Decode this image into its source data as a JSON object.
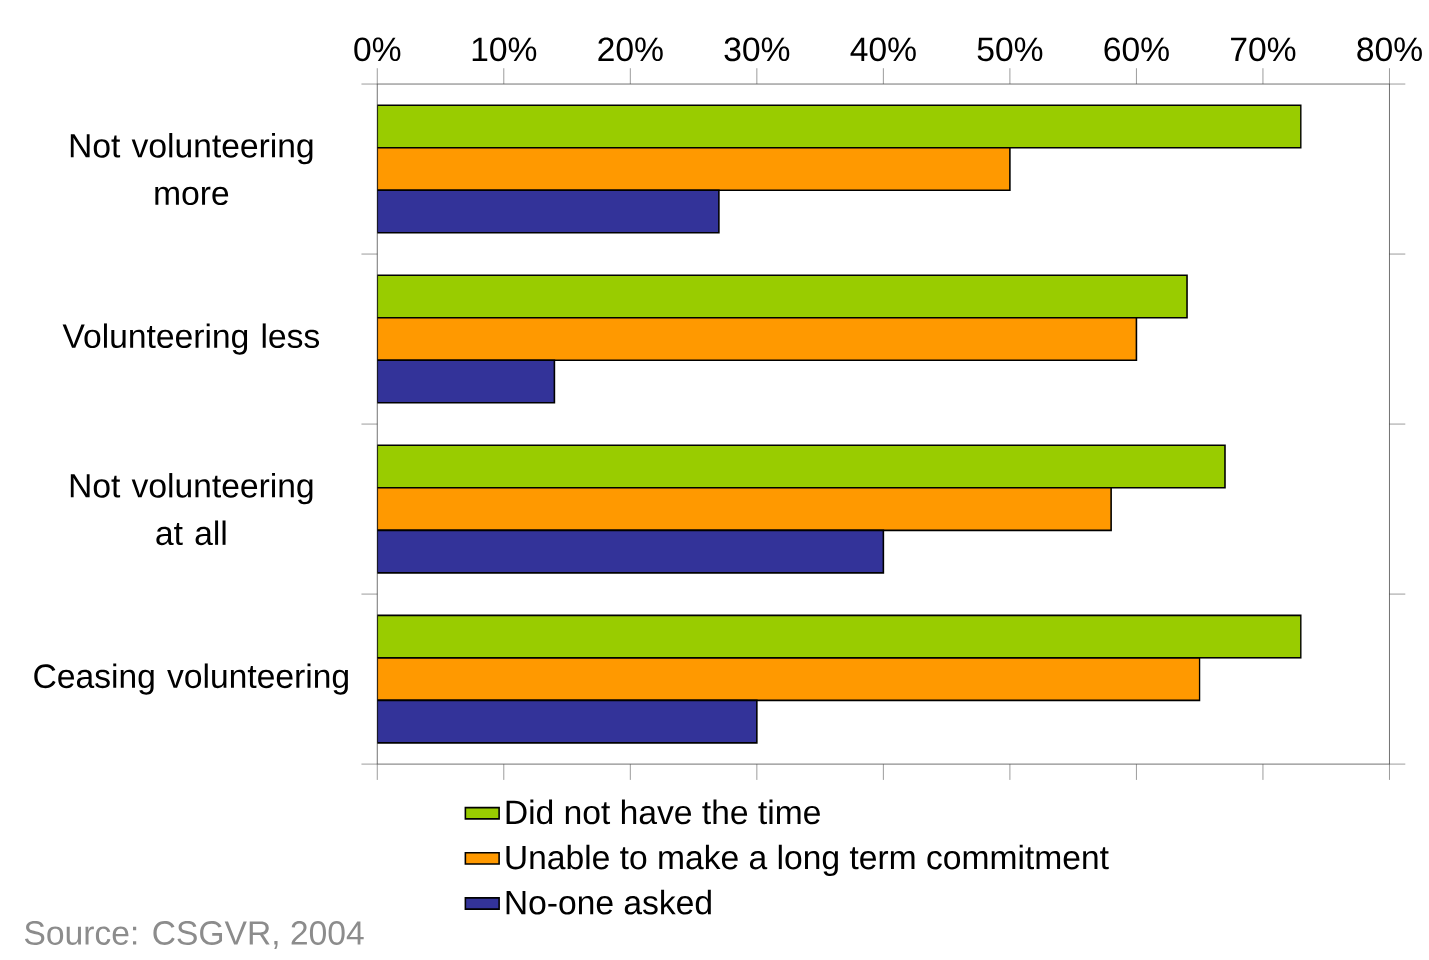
{
  "chart_data": {
    "type": "bar",
    "orientation": "horizontal",
    "categories": [
      "Not volunteering more",
      "Volunteering less",
      "Not volunteering at all",
      "Ceasing volunteering"
    ],
    "series": [
      {
        "name": "Did not have the time",
        "color": "#99cc00",
        "values": [
          73,
          64,
          67,
          73
        ]
      },
      {
        "name": "Unable to make a long term commitment",
        "color": "#ff9900",
        "values": [
          50,
          60,
          58,
          65
        ]
      },
      {
        "name": "No-one asked",
        "color": "#333399",
        "values": [
          27,
          14,
          40,
          30
        ]
      }
    ],
    "xlim": [
      0,
      80
    ],
    "xticks": [
      {
        "value": 0,
        "label": "0%"
      },
      {
        "value": 10,
        "label": "10%"
      },
      {
        "value": 20,
        "label": "20%"
      },
      {
        "value": 30,
        "label": "30%"
      },
      {
        "value": 40,
        "label": "40%"
      },
      {
        "value": 50,
        "label": "50%"
      },
      {
        "value": 60,
        "label": "60%"
      },
      {
        "value": 70,
        "label": "70%"
      },
      {
        "value": 80,
        "label": "80%"
      }
    ],
    "legend": "bottom",
    "annotations": [
      "Source: CSGVR, 2004"
    ]
  }
}
